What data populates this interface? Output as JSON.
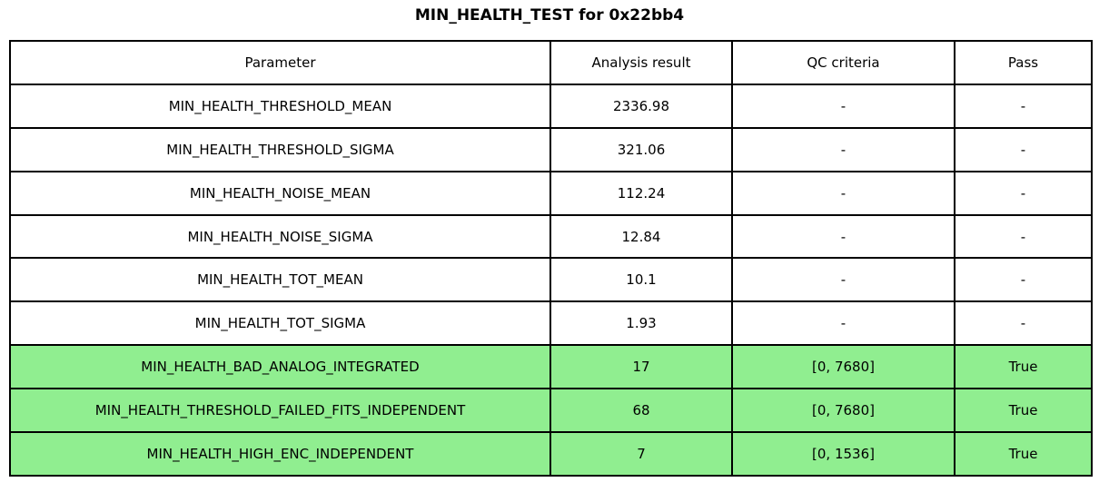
{
  "title": "MIN_HEALTH_TEST for 0x22bb4",
  "colors": {
    "pass_row_bg": "#90EE90",
    "border": "#000000",
    "background": "#FFFFFF"
  },
  "table": {
    "headers": [
      "Parameter",
      "Analysis result",
      "QC criteria",
      "Pass"
    ],
    "rows": [
      {
        "parameter": "MIN_HEALTH_THRESHOLD_MEAN",
        "result": "2336.98",
        "qc": "-",
        "pass": "-",
        "highlight": false
      },
      {
        "parameter": "MIN_HEALTH_THRESHOLD_SIGMA",
        "result": "321.06",
        "qc": "-",
        "pass": "-",
        "highlight": false
      },
      {
        "parameter": "MIN_HEALTH_NOISE_MEAN",
        "result": "112.24",
        "qc": "-",
        "pass": "-",
        "highlight": false
      },
      {
        "parameter": "MIN_HEALTH_NOISE_SIGMA",
        "result": "12.84",
        "qc": "-",
        "pass": "-",
        "highlight": false
      },
      {
        "parameter": "MIN_HEALTH_TOT_MEAN",
        "result": "10.1",
        "qc": "-",
        "pass": "-",
        "highlight": false
      },
      {
        "parameter": "MIN_HEALTH_TOT_SIGMA",
        "result": "1.93",
        "qc": "-",
        "pass": "-",
        "highlight": false
      },
      {
        "parameter": "MIN_HEALTH_BAD_ANALOG_INTEGRATED",
        "result": "17",
        "qc": "[0, 7680]",
        "pass": "True",
        "highlight": true
      },
      {
        "parameter": "MIN_HEALTH_THRESHOLD_FAILED_FITS_INDEPENDENT",
        "result": "68",
        "qc": "[0, 7680]",
        "pass": "True",
        "highlight": true
      },
      {
        "parameter": "MIN_HEALTH_HIGH_ENC_INDEPENDENT",
        "result": "7",
        "qc": "[0, 1536]",
        "pass": "True",
        "highlight": true
      }
    ]
  }
}
